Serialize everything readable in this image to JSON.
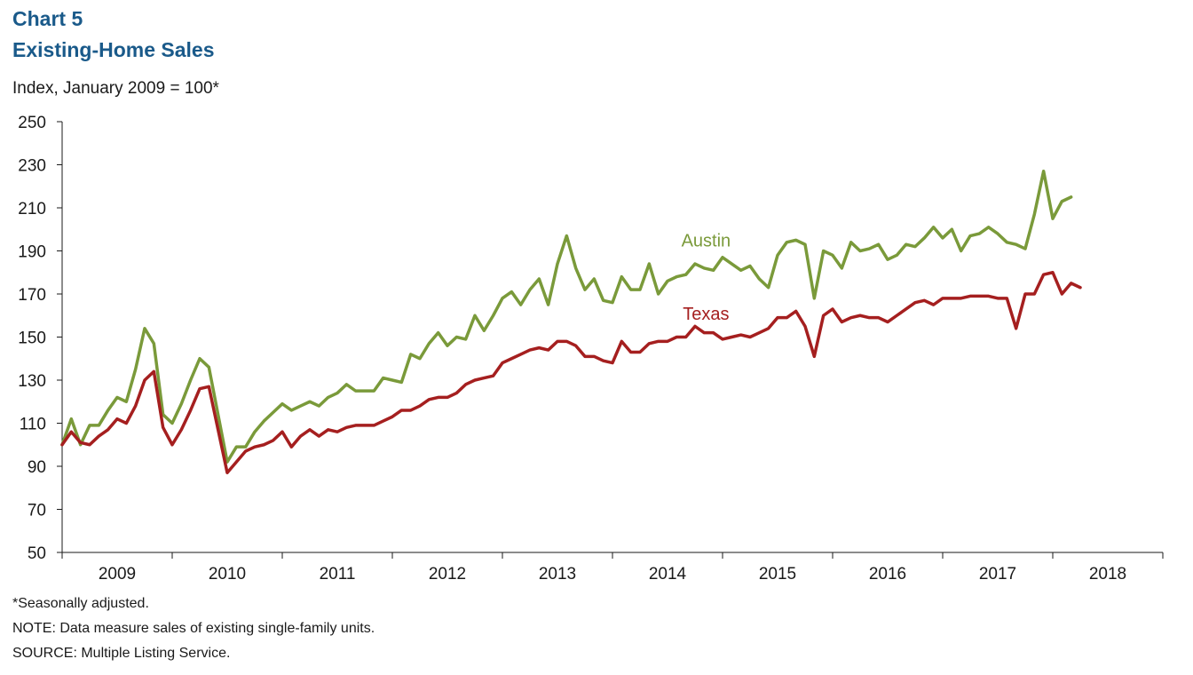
{
  "header": {
    "chart_number": "Chart 5",
    "title": "Existing-Home Sales",
    "subtitle": "Index, January 2009 = 100*"
  },
  "notes": [
    "*Seasonally adjusted.",
    "NOTE: Data measure sales of existing single-family units.",
    "SOURCE: Multiple Listing Service."
  ],
  "chart_data": {
    "type": "line",
    "title": "Existing-Home Sales",
    "ylabel": "Index, January 2009 = 100*",
    "xlabel": "",
    "ylim": [
      50,
      250
    ],
    "yticks": [
      50,
      70,
      90,
      110,
      130,
      150,
      170,
      190,
      210,
      230,
      250
    ],
    "xtick_labels": [
      "2009",
      "2010",
      "2011",
      "2012",
      "2013",
      "2014",
      "2015",
      "2016",
      "2017",
      "2018"
    ],
    "x_start": "2009-01",
    "grid": false,
    "legend": "inline labels",
    "colors": {
      "Austin": "#7a9a3a",
      "Texas": "#a51f1f"
    },
    "series": [
      {
        "name": "Austin",
        "label_position": [
          2014.85,
          192
        ],
        "values": [
          100,
          112,
          100,
          109,
          109,
          116,
          122,
          120,
          135,
          154,
          147,
          114,
          110,
          119,
          130,
          140,
          136,
          114,
          92,
          99,
          99,
          106,
          111,
          115,
          119,
          116,
          118,
          120,
          118,
          122,
          124,
          128,
          125,
          125,
          125,
          131,
          130,
          129,
          142,
          140,
          147,
          152,
          146,
          150,
          149,
          160,
          153,
          160,
          168,
          171,
          165,
          172,
          177,
          165,
          184,
          197,
          182,
          172,
          177,
          167,
          166,
          178,
          172,
          172,
          184,
          170,
          176,
          178,
          179,
          184,
          182,
          181,
          187,
          184,
          181,
          183,
          177,
          173,
          188,
          194,
          195,
          193,
          168,
          190,
          188,
          182,
          194,
          190,
          191,
          193,
          186,
          188,
          193,
          192,
          196,
          201,
          196,
          200,
          190,
          197,
          198,
          201,
          198,
          194,
          193,
          191,
          207,
          227,
          205,
          213,
          215
        ]
      },
      {
        "name": "Texas",
        "label_position": [
          2014.85,
          158
        ],
        "values": [
          100,
          106,
          101,
          100,
          104,
          107,
          112,
          110,
          118,
          130,
          134,
          108,
          100,
          107,
          116,
          126,
          127,
          107,
          87,
          92,
          97,
          99,
          100,
          102,
          106,
          99,
          104,
          107,
          104,
          107,
          106,
          108,
          109,
          109,
          109,
          111,
          113,
          116,
          116,
          118,
          121,
          122,
          122,
          124,
          128,
          130,
          131,
          132,
          138,
          140,
          142,
          144,
          145,
          144,
          148,
          148,
          146,
          141,
          141,
          139,
          138,
          148,
          143,
          143,
          147,
          148,
          148,
          150,
          150,
          155,
          152,
          152,
          149,
          150,
          151,
          150,
          152,
          154,
          159,
          159,
          162,
          155,
          141,
          160,
          163,
          157,
          159,
          160,
          159,
          159,
          157,
          160,
          163,
          166,
          167,
          165,
          168,
          168,
          168,
          169,
          169,
          169,
          168,
          168,
          154,
          170,
          170,
          179,
          180,
          170,
          175,
          173
        ]
      }
    ]
  }
}
